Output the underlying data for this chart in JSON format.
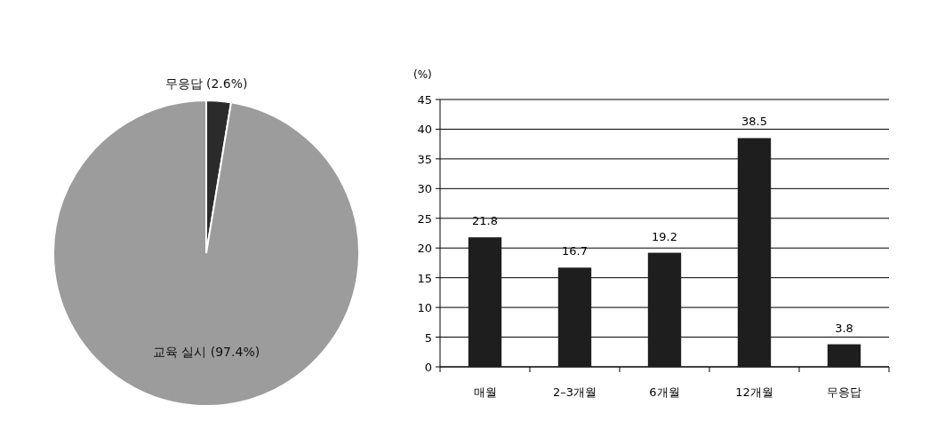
{
  "chart_data": [
    {
      "type": "pie",
      "categories": [
        "무응답 (2.6%)",
        "교육 실시 (97.4%)"
      ],
      "values": [
        2.6,
        97.4
      ],
      "colors": [
        "#2b2b2b",
        "#9c9c9c"
      ]
    },
    {
      "type": "bar",
      "ylabel": "(%)",
      "categories": [
        "매월",
        "2–3개월",
        "6개월",
        "12개월",
        "무응답"
      ],
      "values": [
        21.8,
        16.7,
        19.2,
        38.5,
        3.8
      ],
      "color": "#1e1e1e",
      "ylim": [
        0,
        45
      ],
      "yticks": [
        0,
        5,
        10,
        15,
        20,
        25,
        30,
        35,
        40,
        45
      ],
      "grid": "y",
      "data_labels": true
    }
  ]
}
